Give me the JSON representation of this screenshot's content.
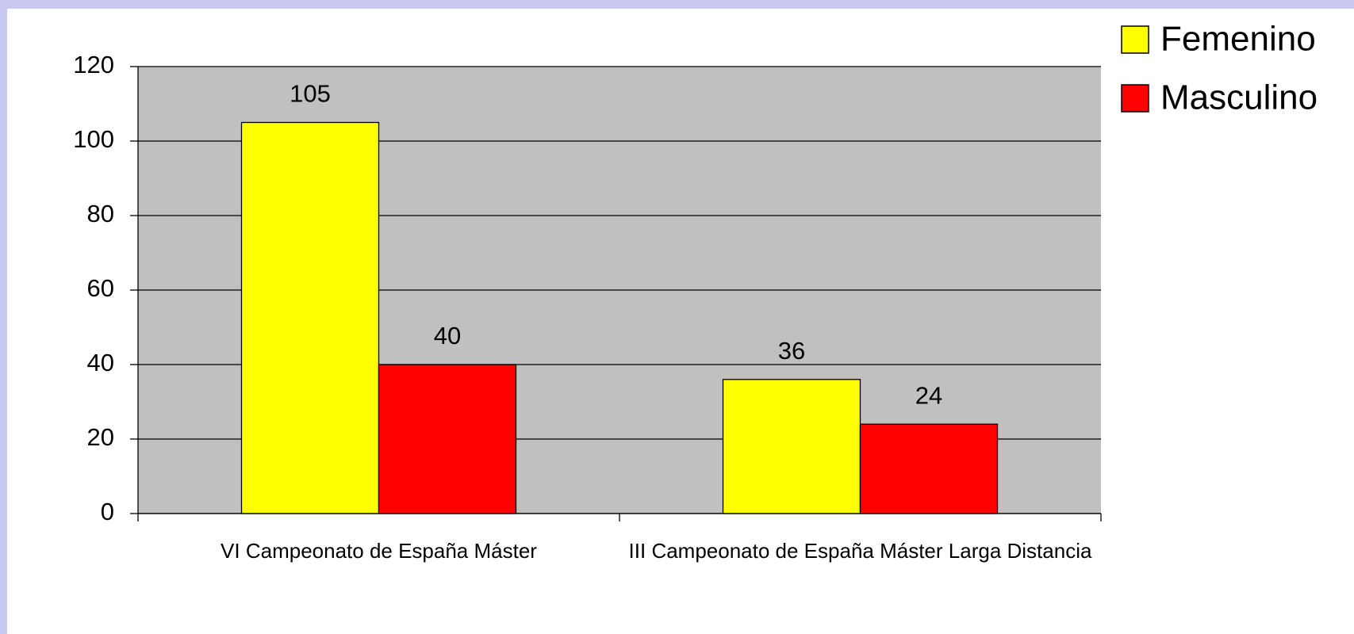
{
  "chart_data": {
    "type": "bar",
    "categories": [
      "VI Campeonato de España Máster",
      "III Campeonato de España Máster Larga Distancia"
    ],
    "series": [
      {
        "name": "Femenino",
        "color": "#ffff00",
        "values": [
          105,
          36
        ]
      },
      {
        "name": "Masculino",
        "color": "#ff0000",
        "values": [
          40,
          24
        ]
      }
    ],
    "ylim": [
      0,
      120
    ],
    "yticks": [
      0,
      20,
      40,
      60,
      80,
      100,
      120
    ],
    "grid": true,
    "legend": "top-right"
  }
}
